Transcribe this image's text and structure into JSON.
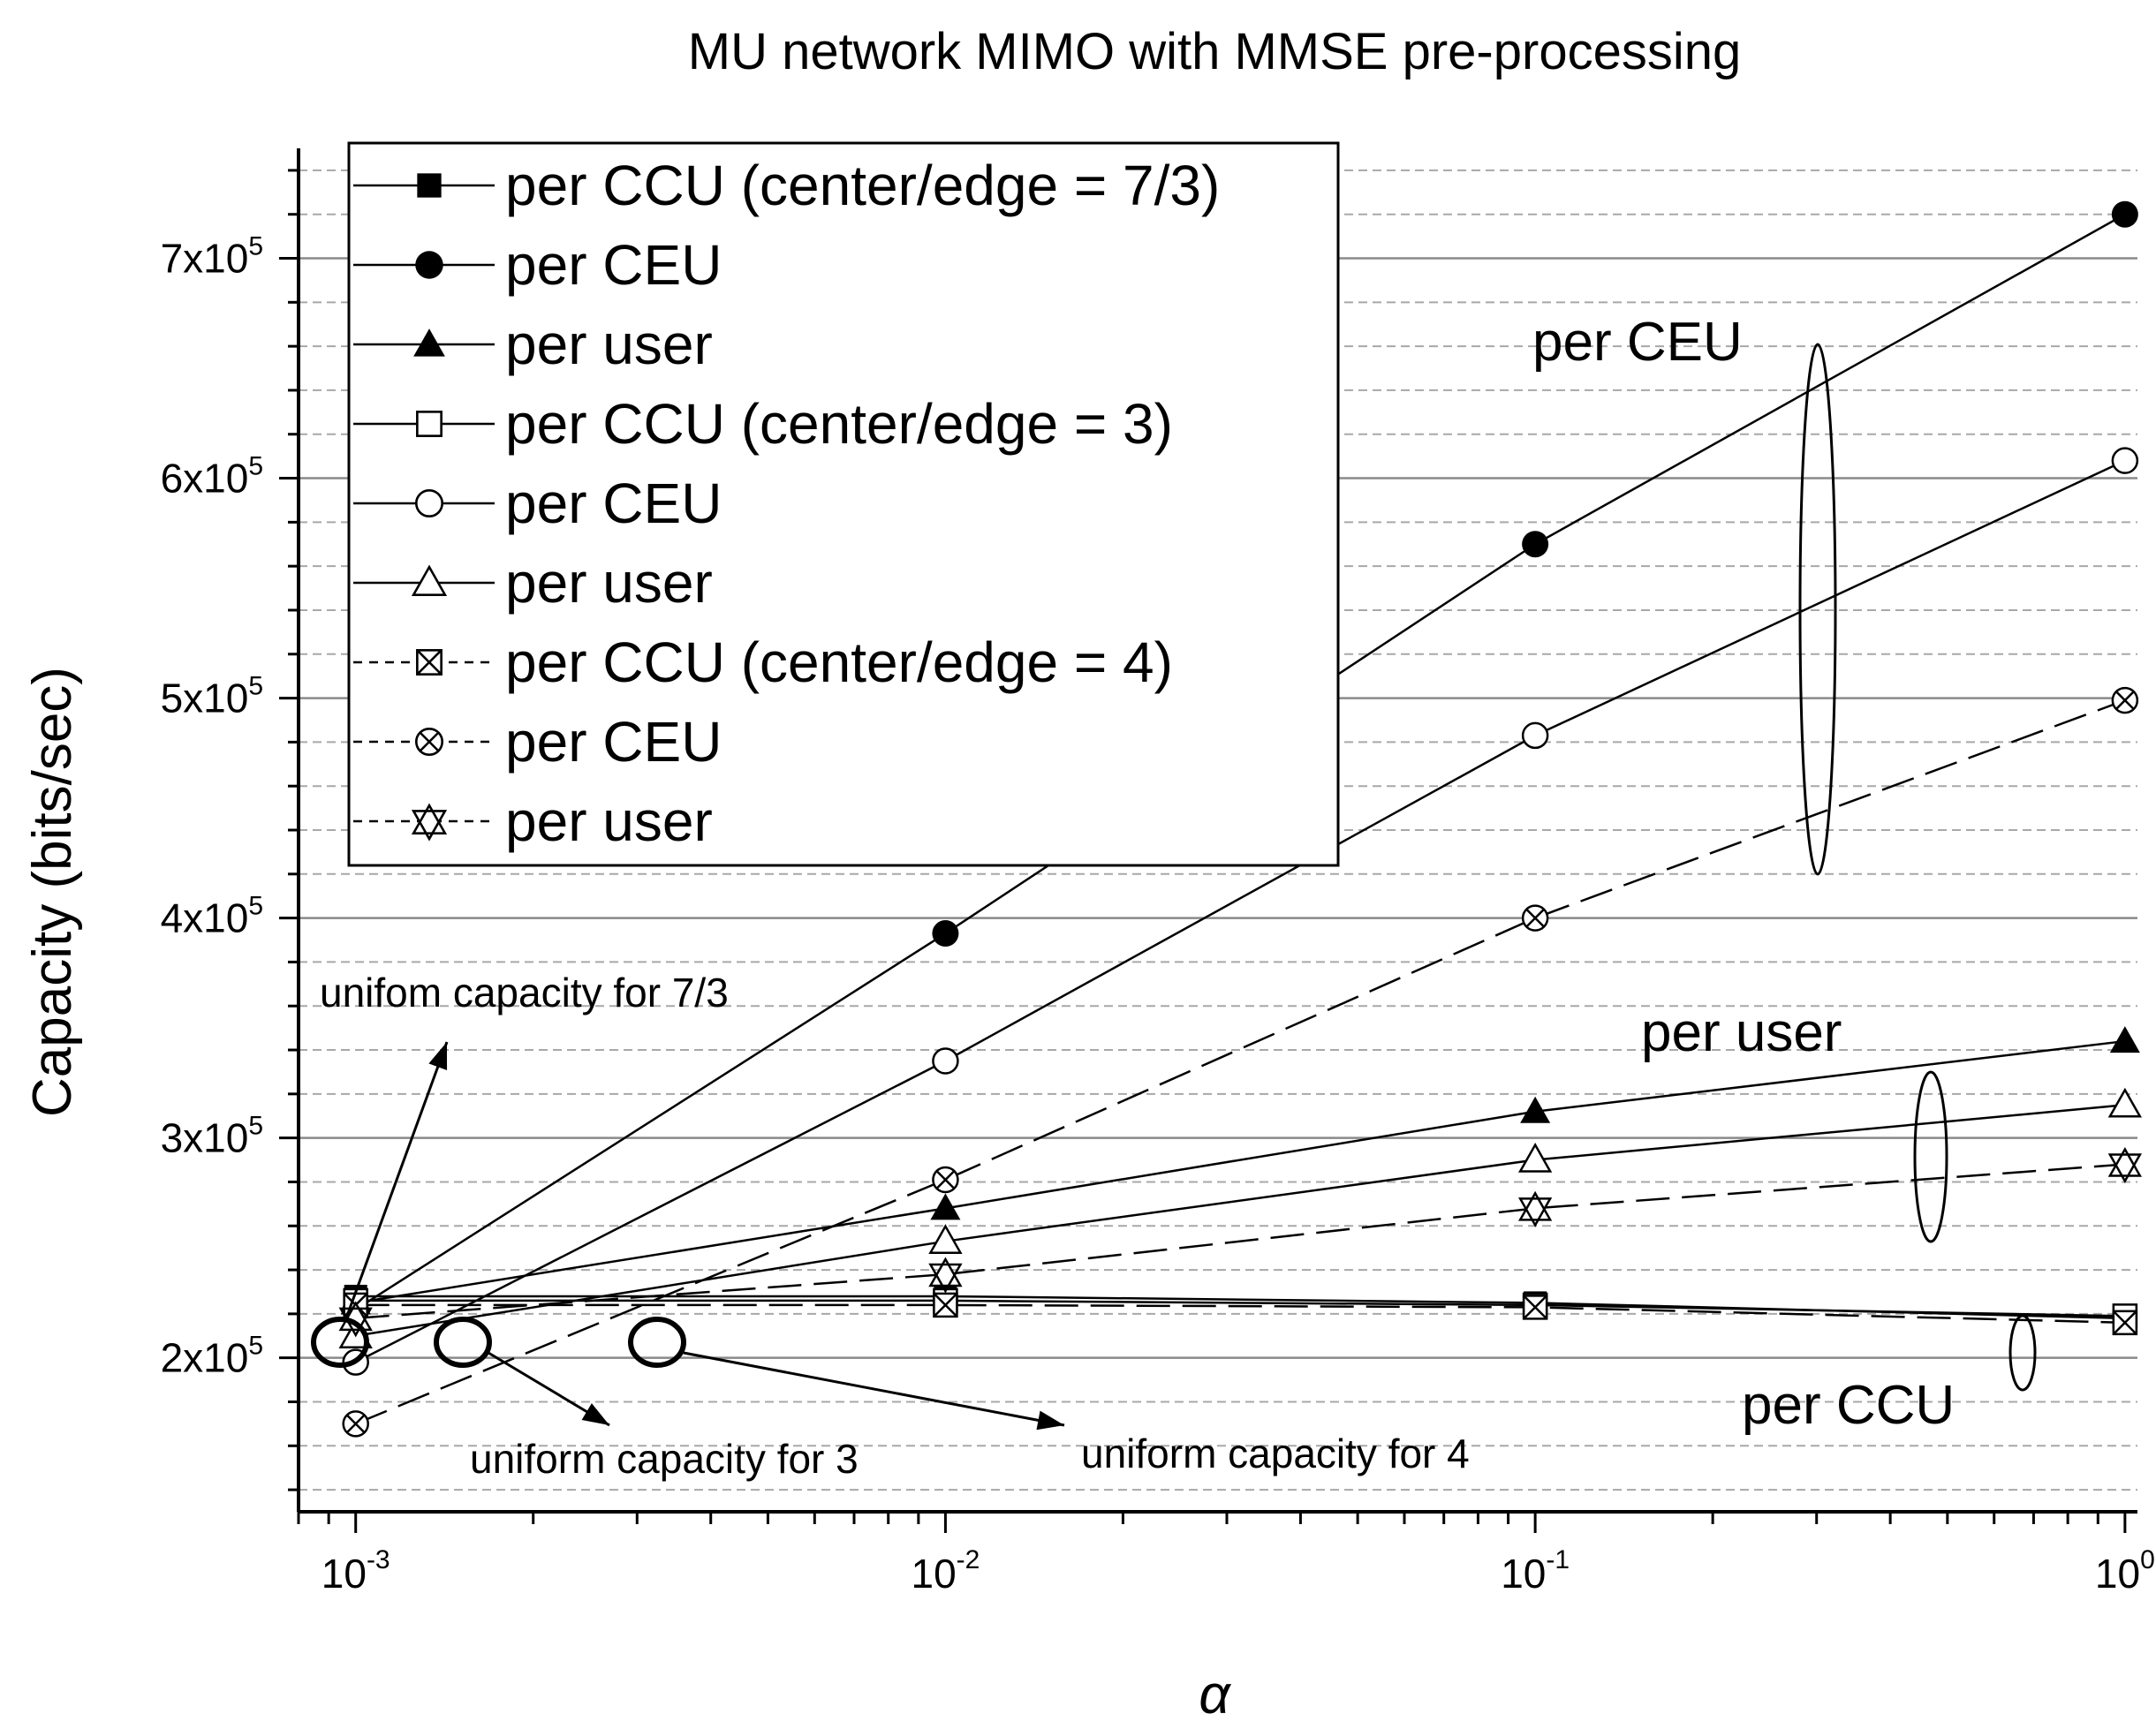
{
  "chart_data": {
    "type": "line",
    "title": "MU network MIMO with MMSE pre-processing",
    "xlabel": "α",
    "ylabel": "Capacity (bits/sec)",
    "xscale": "log",
    "xlim": [
      0.0008,
      1.05
    ],
    "ylim": [
      130000,
      750000
    ],
    "x": [
      0.001,
      0.01,
      0.1,
      1
    ],
    "xtick_values": [
      0.001,
      0.01,
      0.1,
      1
    ],
    "xtick_bases": [
      "10",
      "10",
      "10",
      "10"
    ],
    "xtick_exps": [
      "-3",
      "-2",
      "-1",
      "0"
    ],
    "ytick_values": [
      200000,
      300000,
      400000,
      500000,
      600000,
      700000
    ],
    "ytick_mantissas": [
      "2x10",
      "3x10",
      "4x10",
      "5x10",
      "6x10",
      "7x10"
    ],
    "ytick_exps": [
      "5",
      "5",
      "5",
      "5",
      "5",
      "5"
    ],
    "grid": true,
    "legend_position": "top-left",
    "series": [
      {
        "name": "per CCU (center/edge = 7/3)",
        "values": [
          228000,
          228000,
          225000,
          218000
        ],
        "marker": "filled-square",
        "dash": "solid"
      },
      {
        "name": "per CEU",
        "values": [
          222000,
          393000,
          570000,
          720000
        ],
        "marker": "filled-circle",
        "dash": "solid"
      },
      {
        "name": "per user",
        "values": [
          225000,
          268000,
          312000,
          344000
        ],
        "marker": "filled-triangle",
        "dash": "solid"
      },
      {
        "name": "per CCU (center/edge = 3)",
        "values": [
          226000,
          226000,
          224000,
          219000
        ],
        "marker": "open-square",
        "dash": "solid"
      },
      {
        "name": "per CEU",
        "values": [
          198000,
          335000,
          483000,
          608000
        ],
        "marker": "open-circle",
        "dash": "solid"
      },
      {
        "name": "per user",
        "values": [
          210000,
          253000,
          290000,
          315000
        ],
        "marker": "open-triangle",
        "dash": "solid"
      },
      {
        "name": "per CCU (center/edge = 4)",
        "values": [
          224000,
          224000,
          223000,
          216000
        ],
        "marker": "crossed-square",
        "dash": "dashed"
      },
      {
        "name": "per CEU",
        "values": [
          170000,
          281000,
          400000,
          499000
        ],
        "marker": "crossed-circle",
        "dash": "dashed"
      },
      {
        "name": "per user",
        "values": [
          218000,
          238000,
          268000,
          288000
        ],
        "marker": "crossed-triangle",
        "dash": "dashed"
      }
    ],
    "annotations": [
      {
        "text": "unifom capacity for 7/3"
      },
      {
        "text": "uniform capacity for 3"
      },
      {
        "text": "uniform capacity for 4"
      }
    ],
    "group_labels": [
      {
        "text": "per CEU"
      },
      {
        "text": "per user"
      },
      {
        "text": "per CCU"
      }
    ]
  }
}
